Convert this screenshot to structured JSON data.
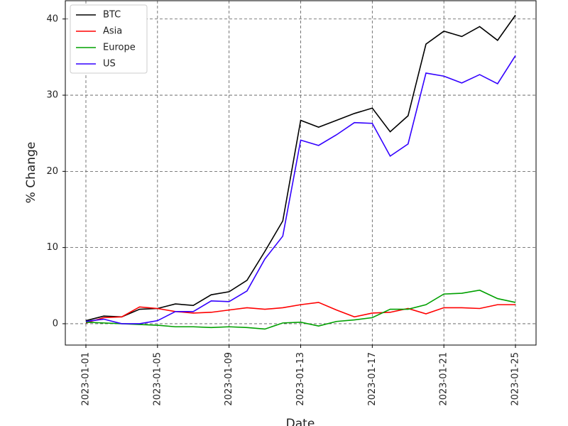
{
  "chart_data": {
    "type": "line",
    "x": [
      "2023-01-01",
      "2023-01-02",
      "2023-01-03",
      "2023-01-04",
      "2023-01-05",
      "2023-01-06",
      "2023-01-07",
      "2023-01-08",
      "2023-01-09",
      "2023-01-10",
      "2023-01-11",
      "2023-01-12",
      "2023-01-13",
      "2023-01-14",
      "2023-01-15",
      "2023-01-16",
      "2023-01-17",
      "2023-01-18",
      "2023-01-19",
      "2023-01-20",
      "2023-01-21",
      "2023-01-22",
      "2023-01-23",
      "2023-01-24",
      "2023-01-25"
    ],
    "series": [
      {
        "name": "BTC",
        "color": "#000000",
        "values": [
          0.4,
          1.0,
          0.9,
          1.9,
          2.0,
          2.6,
          2.4,
          3.8,
          4.2,
          5.7,
          9.5,
          13.5,
          26.7,
          25.8,
          26.7,
          27.6,
          28.3,
          25.2,
          27.3,
          36.7,
          38.4,
          37.7,
          39.0,
          37.2,
          40.5
        ]
      },
      {
        "name": "Asia",
        "color": "#ff0000",
        "values": [
          0.1,
          0.8,
          0.9,
          2.2,
          2.0,
          1.6,
          1.4,
          1.5,
          1.8,
          2.1,
          1.9,
          2.1,
          2.5,
          2.8,
          1.8,
          0.9,
          1.4,
          1.5,
          2.0,
          1.3,
          2.1,
          2.1,
          2.0,
          2.5,
          2.5
        ]
      },
      {
        "name": "Europe",
        "color": "#00a000",
        "values": [
          0.2,
          0.1,
          0.0,
          -0.1,
          -0.2,
          -0.4,
          -0.4,
          -0.5,
          -0.4,
          -0.5,
          -0.7,
          0.1,
          0.2,
          -0.3,
          0.3,
          0.5,
          0.8,
          1.9,
          1.9,
          2.5,
          3.9,
          4.0,
          4.4,
          3.3,
          2.8
        ]
      },
      {
        "name": "US",
        "color": "#3300ff",
        "values": [
          0.3,
          0.6,
          0.0,
          0.0,
          0.4,
          1.6,
          1.6,
          3.0,
          2.9,
          4.3,
          8.5,
          11.5,
          24.1,
          23.4,
          24.8,
          26.4,
          26.3,
          22.0,
          23.6,
          32.9,
          32.5,
          31.6,
          32.7,
          31.5,
          35.2
        ]
      }
    ],
    "xlabel": "Date",
    "ylabel": "% Change",
    "xticks": [
      "2023-01-01",
      "2023-01-05",
      "2023-01-09",
      "2023-01-13",
      "2023-01-17",
      "2023-01-21",
      "2023-01-25"
    ],
    "ylim": [
      -2.8,
      42.4
    ],
    "yticks": [
      0,
      10,
      20,
      30,
      40
    ],
    "grid": true,
    "legend": "upper-left"
  }
}
